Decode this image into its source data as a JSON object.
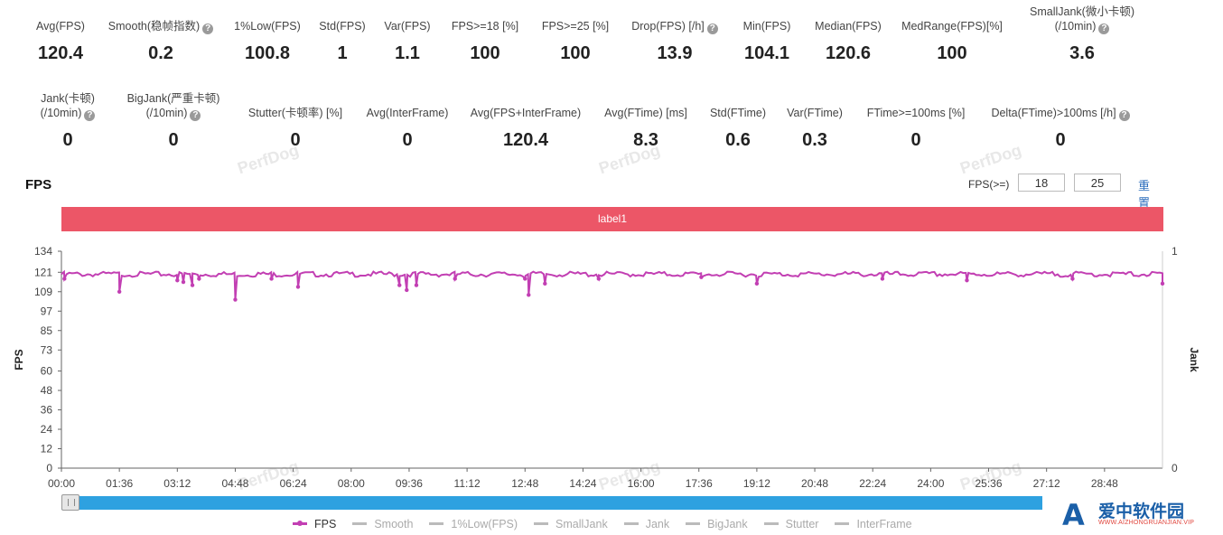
{
  "metrics_row1": [
    {
      "label": "Avg(FPS)",
      "value": "120.4",
      "help": false
    },
    {
      "label": "Smooth(稳帧指数)",
      "value": "0.2",
      "help": true
    },
    {
      "label": "1%Low(FPS)",
      "value": "100.8",
      "help": false
    },
    {
      "label": "Std(FPS)",
      "value": "1",
      "help": false
    },
    {
      "label": "Var(FPS)",
      "value": "1.1",
      "help": false
    },
    {
      "label": "FPS>=18 [%]",
      "value": "100",
      "help": false
    },
    {
      "label": "FPS>=25 [%]",
      "value": "100",
      "help": false
    },
    {
      "label": "Drop(FPS) [/h]",
      "value": "13.9",
      "help": true
    },
    {
      "label": "Min(FPS)",
      "value": "104.1",
      "help": false
    },
    {
      "label": "Median(FPS)",
      "value": "120.6",
      "help": false
    },
    {
      "label": "MedRange(FPS)[%]",
      "value": "100",
      "help": false
    },
    {
      "label": "SmallJank(微小卡顿)",
      "label2": "(/10min)",
      "value": "3.6",
      "help": true
    }
  ],
  "metrics_row2": [
    {
      "label": "Jank(卡顿)",
      "label2": "(/10min)",
      "value": "0",
      "help": true
    },
    {
      "label": "BigJank(严重卡顿)",
      "label2": "(/10min)",
      "value": "0",
      "help": true
    },
    {
      "label": "Stutter(卡顿率) [%]",
      "value": "0",
      "help": false
    },
    {
      "label": "Avg(InterFrame)",
      "value": "0",
      "help": false
    },
    {
      "label": "Avg(FPS+InterFrame)",
      "value": "120.4",
      "help": false
    },
    {
      "label": "Avg(FTime) [ms]",
      "value": "8.3",
      "help": false
    },
    {
      "label": "Std(FTime)",
      "value": "0.6",
      "help": false
    },
    {
      "label": "Var(FTime)",
      "value": "0.3",
      "help": false
    },
    {
      "label": "FTime>=100ms [%]",
      "value": "0",
      "help": false
    },
    {
      "label": "Delta(FTime)>100ms [/h]",
      "value": "0",
      "help": true
    }
  ],
  "watermark": "PerfDog",
  "help_icon": "?",
  "chart_title": "FPS",
  "threshold": {
    "label": "FPS(>=)",
    "value1": "18",
    "value2": "25",
    "reset_label": "重置"
  },
  "label_bar": {
    "text": "label1",
    "color": "#ec5667"
  },
  "series_color": "#c23fb3",
  "legend": [
    {
      "name": "FPS",
      "active": true
    },
    {
      "name": "Smooth",
      "active": false
    },
    {
      "name": "1%Low(FPS)",
      "active": false
    },
    {
      "name": "SmallJank",
      "active": false
    },
    {
      "name": "Jank",
      "active": false
    },
    {
      "name": "BigJank",
      "active": false
    },
    {
      "name": "Stutter",
      "active": false
    },
    {
      "name": "InterFrame",
      "active": false
    }
  ],
  "logo": {
    "mark": "A",
    "name": "爱中软件园",
    "url": "WWW.AIZHONGRUANJIAN.VIP"
  },
  "chart_data": {
    "type": "line",
    "xlabel": "",
    "ylabel": "FPS",
    "y2label": "Jank",
    "ylim": [
      0,
      134
    ],
    "y2lim": [
      0,
      1
    ],
    "yticks": [
      "134",
      "121",
      "109",
      "97",
      "85",
      "73",
      "60",
      "48",
      "36",
      "24",
      "12",
      "0"
    ],
    "y2ticks": [
      "1",
      "0"
    ],
    "xticks": [
      "00:00",
      "01:36",
      "03:12",
      "04:48",
      "06:24",
      "08:00",
      "09:36",
      "11:12",
      "12:48",
      "14:24",
      "16:00",
      "17:36",
      "19:12",
      "20:48",
      "22:24",
      "24:00",
      "25:36",
      "27:12",
      "28:48"
    ],
    "x_unit": "mm:ss",
    "x_range_seconds": [
      0,
      1824
    ],
    "baseline_fps": 120.6,
    "series": [
      {
        "name": "FPS",
        "dips": [
          {
            "t": "00:05",
            "fps": 117
          },
          {
            "t": "01:36",
            "fps": 109
          },
          {
            "t": "03:12",
            "fps": 116
          },
          {
            "t": "03:22",
            "fps": 115
          },
          {
            "t": "03:37",
            "fps": 113
          },
          {
            "t": "03:48",
            "fps": 117
          },
          {
            "t": "04:48",
            "fps": 104.1
          },
          {
            "t": "05:48",
            "fps": 117
          },
          {
            "t": "06:32",
            "fps": 112
          },
          {
            "t": "09:20",
            "fps": 113
          },
          {
            "t": "09:32",
            "fps": 110
          },
          {
            "t": "09:48",
            "fps": 113
          },
          {
            "t": "10:52",
            "fps": 117
          },
          {
            "t": "12:48",
            "fps": 117
          },
          {
            "t": "12:54",
            "fps": 107
          },
          {
            "t": "13:21",
            "fps": 114
          },
          {
            "t": "14:50",
            "fps": 117
          },
          {
            "t": "17:40",
            "fps": 118
          },
          {
            "t": "19:12",
            "fps": 114
          },
          {
            "t": "22:40",
            "fps": 117
          },
          {
            "t": "25:00",
            "fps": 116
          },
          {
            "t": "27:55",
            "fps": 117
          },
          {
            "t": "30:24",
            "fps": 114
          }
        ]
      }
    ],
    "grid": false,
    "legend_position": "bottom"
  }
}
